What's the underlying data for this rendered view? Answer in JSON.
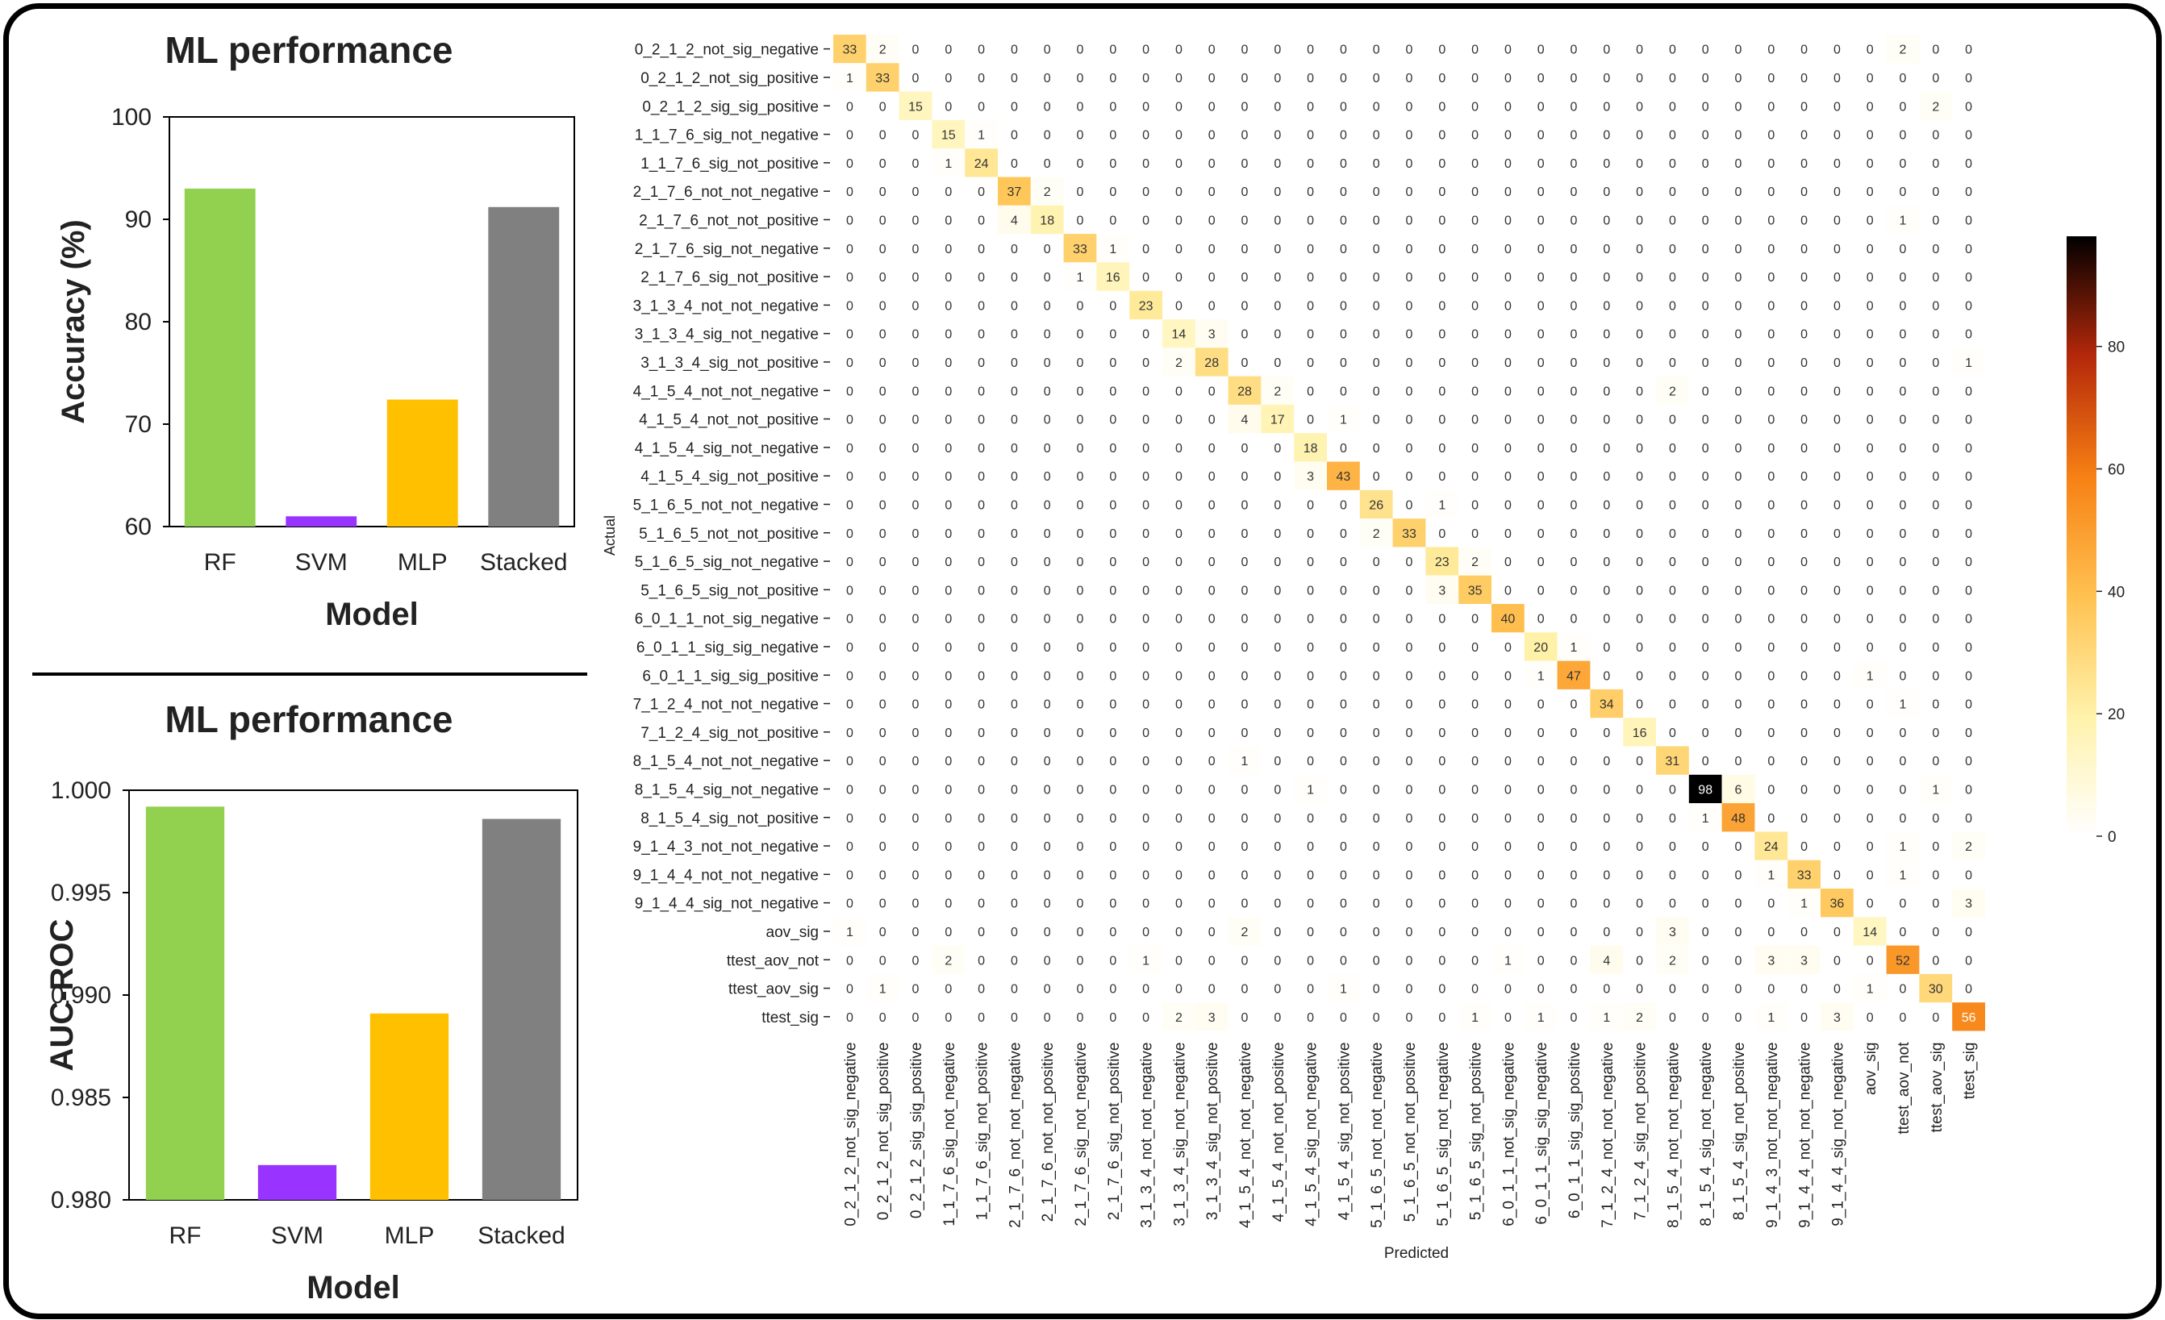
{
  "charts": {
    "accuracy": {
      "type": "bar",
      "title": "ML performance",
      "xlabel": "Model",
      "ylabel": "Accuracy (%)",
      "categories": [
        "RF",
        "SVM",
        "MLP",
        "Stacked"
      ],
      "values": [
        93.0,
        61.0,
        72.4,
        91.2
      ],
      "colors": [
        "#92d050",
        "#9933ff",
        "#ffc000",
        "#808080"
      ],
      "ylim": [
        60,
        100
      ],
      "yticks": [
        "60",
        "70",
        "80",
        "90",
        "100"
      ]
    },
    "auc": {
      "type": "bar",
      "title": "ML performance",
      "xlabel": "Model",
      "ylabel": "AUC-ROC",
      "categories": [
        "RF",
        "SVM",
        "MLP",
        "Stacked"
      ],
      "values": [
        0.9992,
        0.9817,
        0.9891,
        0.9986
      ],
      "colors": [
        "#92d050",
        "#9933ff",
        "#ffc000",
        "#808080"
      ],
      "ylim": [
        0.98,
        1.0
      ],
      "yticks": [
        "0.980",
        "0.985",
        "0.990",
        "0.995",
        "1.000"
      ]
    },
    "confusion": {
      "type": "heatmap",
      "xlabel": "Predicted",
      "ylabel": "Actual",
      "labels": [
        "0_2_1_2_not_sig_negative",
        "0_2_1_2_not_sig_positive",
        "0_2_1_2_sig_sig_positive",
        "1_1_7_6_sig_not_negative",
        "1_1_7_6_sig_not_positive",
        "2_1_7_6_not_not_negative",
        "2_1_7_6_not_not_positive",
        "2_1_7_6_sig_not_negative",
        "2_1_7_6_sig_not_positive",
        "3_1_3_4_not_not_negative",
        "3_1_3_4_sig_not_negative",
        "3_1_3_4_sig_not_positive",
        "4_1_5_4_not_not_negative",
        "4_1_5_4_not_not_positive",
        "4_1_5_4_sig_not_negative",
        "4_1_5_4_sig_not_positive",
        "5_1_6_5_not_not_negative",
        "5_1_6_5_not_not_positive",
        "5_1_6_5_sig_not_negative",
        "5_1_6_5_sig_not_positive",
        "6_0_1_1_not_sig_negative",
        "6_0_1_1_sig_sig_negative",
        "6_0_1_1_sig_sig_positive",
        "7_1_2_4_not_not_negative",
        "7_1_2_4_sig_not_positive",
        "8_1_5_4_not_not_negative",
        "8_1_5_4_sig_not_negative",
        "8_1_5_4_sig_not_positive",
        "9_1_4_3_not_not_negative",
        "9_1_4_4_not_not_negative",
        "9_1_4_4_sig_not_negative",
        "aov_sig",
        "ttest_aov_not",
        "ttest_aov_sig",
        "ttest_sig"
      ],
      "diagonal": [
        33,
        33,
        15,
        15,
        24,
        37,
        18,
        33,
        16,
        23,
        14,
        28,
        28,
        17,
        18,
        43,
        26,
        33,
        23,
        35,
        40,
        20,
        47,
        34,
        16,
        31,
        98,
        48,
        24,
        33,
        36,
        14,
        52,
        30,
        56
      ],
      "off_diagonal": [
        [
          0,
          1,
          2
        ],
        [
          0,
          32,
          2
        ],
        [
          1,
          0,
          1
        ],
        [
          2,
          33,
          2
        ],
        [
          3,
          4,
          1
        ],
        [
          4,
          3,
          1
        ],
        [
          5,
          6,
          2
        ],
        [
          6,
          5,
          4
        ],
        [
          6,
          32,
          1
        ],
        [
          7,
          8,
          1
        ],
        [
          8,
          7,
          1
        ],
        [
          10,
          11,
          3
        ],
        [
          11,
          10,
          2
        ],
        [
          11,
          34,
          1
        ],
        [
          12,
          13,
          2
        ],
        [
          12,
          25,
          2
        ],
        [
          13,
          12,
          4
        ],
        [
          13,
          15,
          1
        ],
        [
          15,
          14,
          3
        ],
        [
          16,
          18,
          1
        ],
        [
          17,
          16,
          2
        ],
        [
          18,
          19,
          2
        ],
        [
          19,
          18,
          3
        ],
        [
          21,
          22,
          1
        ],
        [
          22,
          21,
          1
        ],
        [
          22,
          31,
          1
        ],
        [
          23,
          32,
          1
        ],
        [
          25,
          12,
          1
        ],
        [
          26,
          14,
          1
        ],
        [
          26,
          27,
          6
        ],
        [
          26,
          33,
          1
        ],
        [
          27,
          26,
          1
        ],
        [
          28,
          32,
          1
        ],
        [
          28,
          34,
          2
        ],
        [
          29,
          28,
          1
        ],
        [
          29,
          32,
          1
        ],
        [
          30,
          29,
          1
        ],
        [
          30,
          34,
          3
        ],
        [
          31,
          0,
          1
        ],
        [
          31,
          12,
          2
        ],
        [
          31,
          25,
          3
        ],
        [
          32,
          3,
          2
        ],
        [
          32,
          9,
          1
        ],
        [
          32,
          20,
          1
        ],
        [
          32,
          23,
          4
        ],
        [
          32,
          25,
          2
        ],
        [
          32,
          28,
          3
        ],
        [
          32,
          29,
          3
        ],
        [
          33,
          1,
          1
        ],
        [
          33,
          15,
          1
        ],
        [
          33,
          31,
          1
        ],
        [
          34,
          10,
          2
        ],
        [
          34,
          11,
          3
        ],
        [
          34,
          19,
          1
        ],
        [
          34,
          21,
          1
        ],
        [
          34,
          23,
          1
        ],
        [
          34,
          24,
          2
        ],
        [
          34,
          28,
          1
        ],
        [
          34,
          30,
          3
        ]
      ],
      "colorbar": {
        "min": 0,
        "max": 98,
        "ticks": [
          "0",
          "20",
          "40",
          "60",
          "80"
        ],
        "tick_values": [
          0,
          20,
          40,
          60,
          80
        ]
      }
    }
  }
}
